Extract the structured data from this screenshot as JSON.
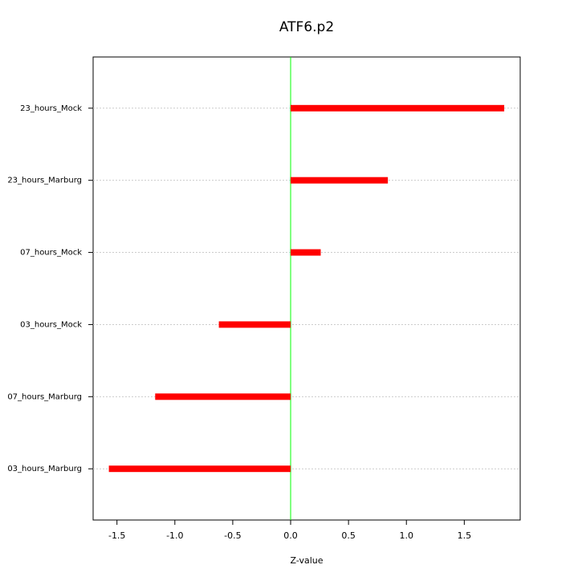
{
  "chart_data": {
    "type": "hbar",
    "title": "ATF6.p2",
    "x_label": "Z-value",
    "categories": [
      "03_hours_Marburg",
      "07_hours_Marburg",
      "03_hours_Mock",
      "07_hours_Mock",
      "23_hours_Marburg",
      "23_hours_Mock"
    ],
    "values": [
      -1.57,
      -1.17,
      -0.62,
      0.26,
      0.84,
      1.845
    ],
    "color": "#ff0000",
    "xlim": [
      -1.706,
      1.983
    ],
    "xticks": [
      -1.5,
      {
        "value": -1,
        "label": "-1.0"
      },
      -0.5,
      {
        "value": 0,
        "label": "0.0"
      },
      0.5,
      {
        "value": 1,
        "label": "1.0"
      },
      1.5
    ],
    "reference_line": {
      "value": 0,
      "color": "#00ff00"
    },
    "grid": true
  }
}
